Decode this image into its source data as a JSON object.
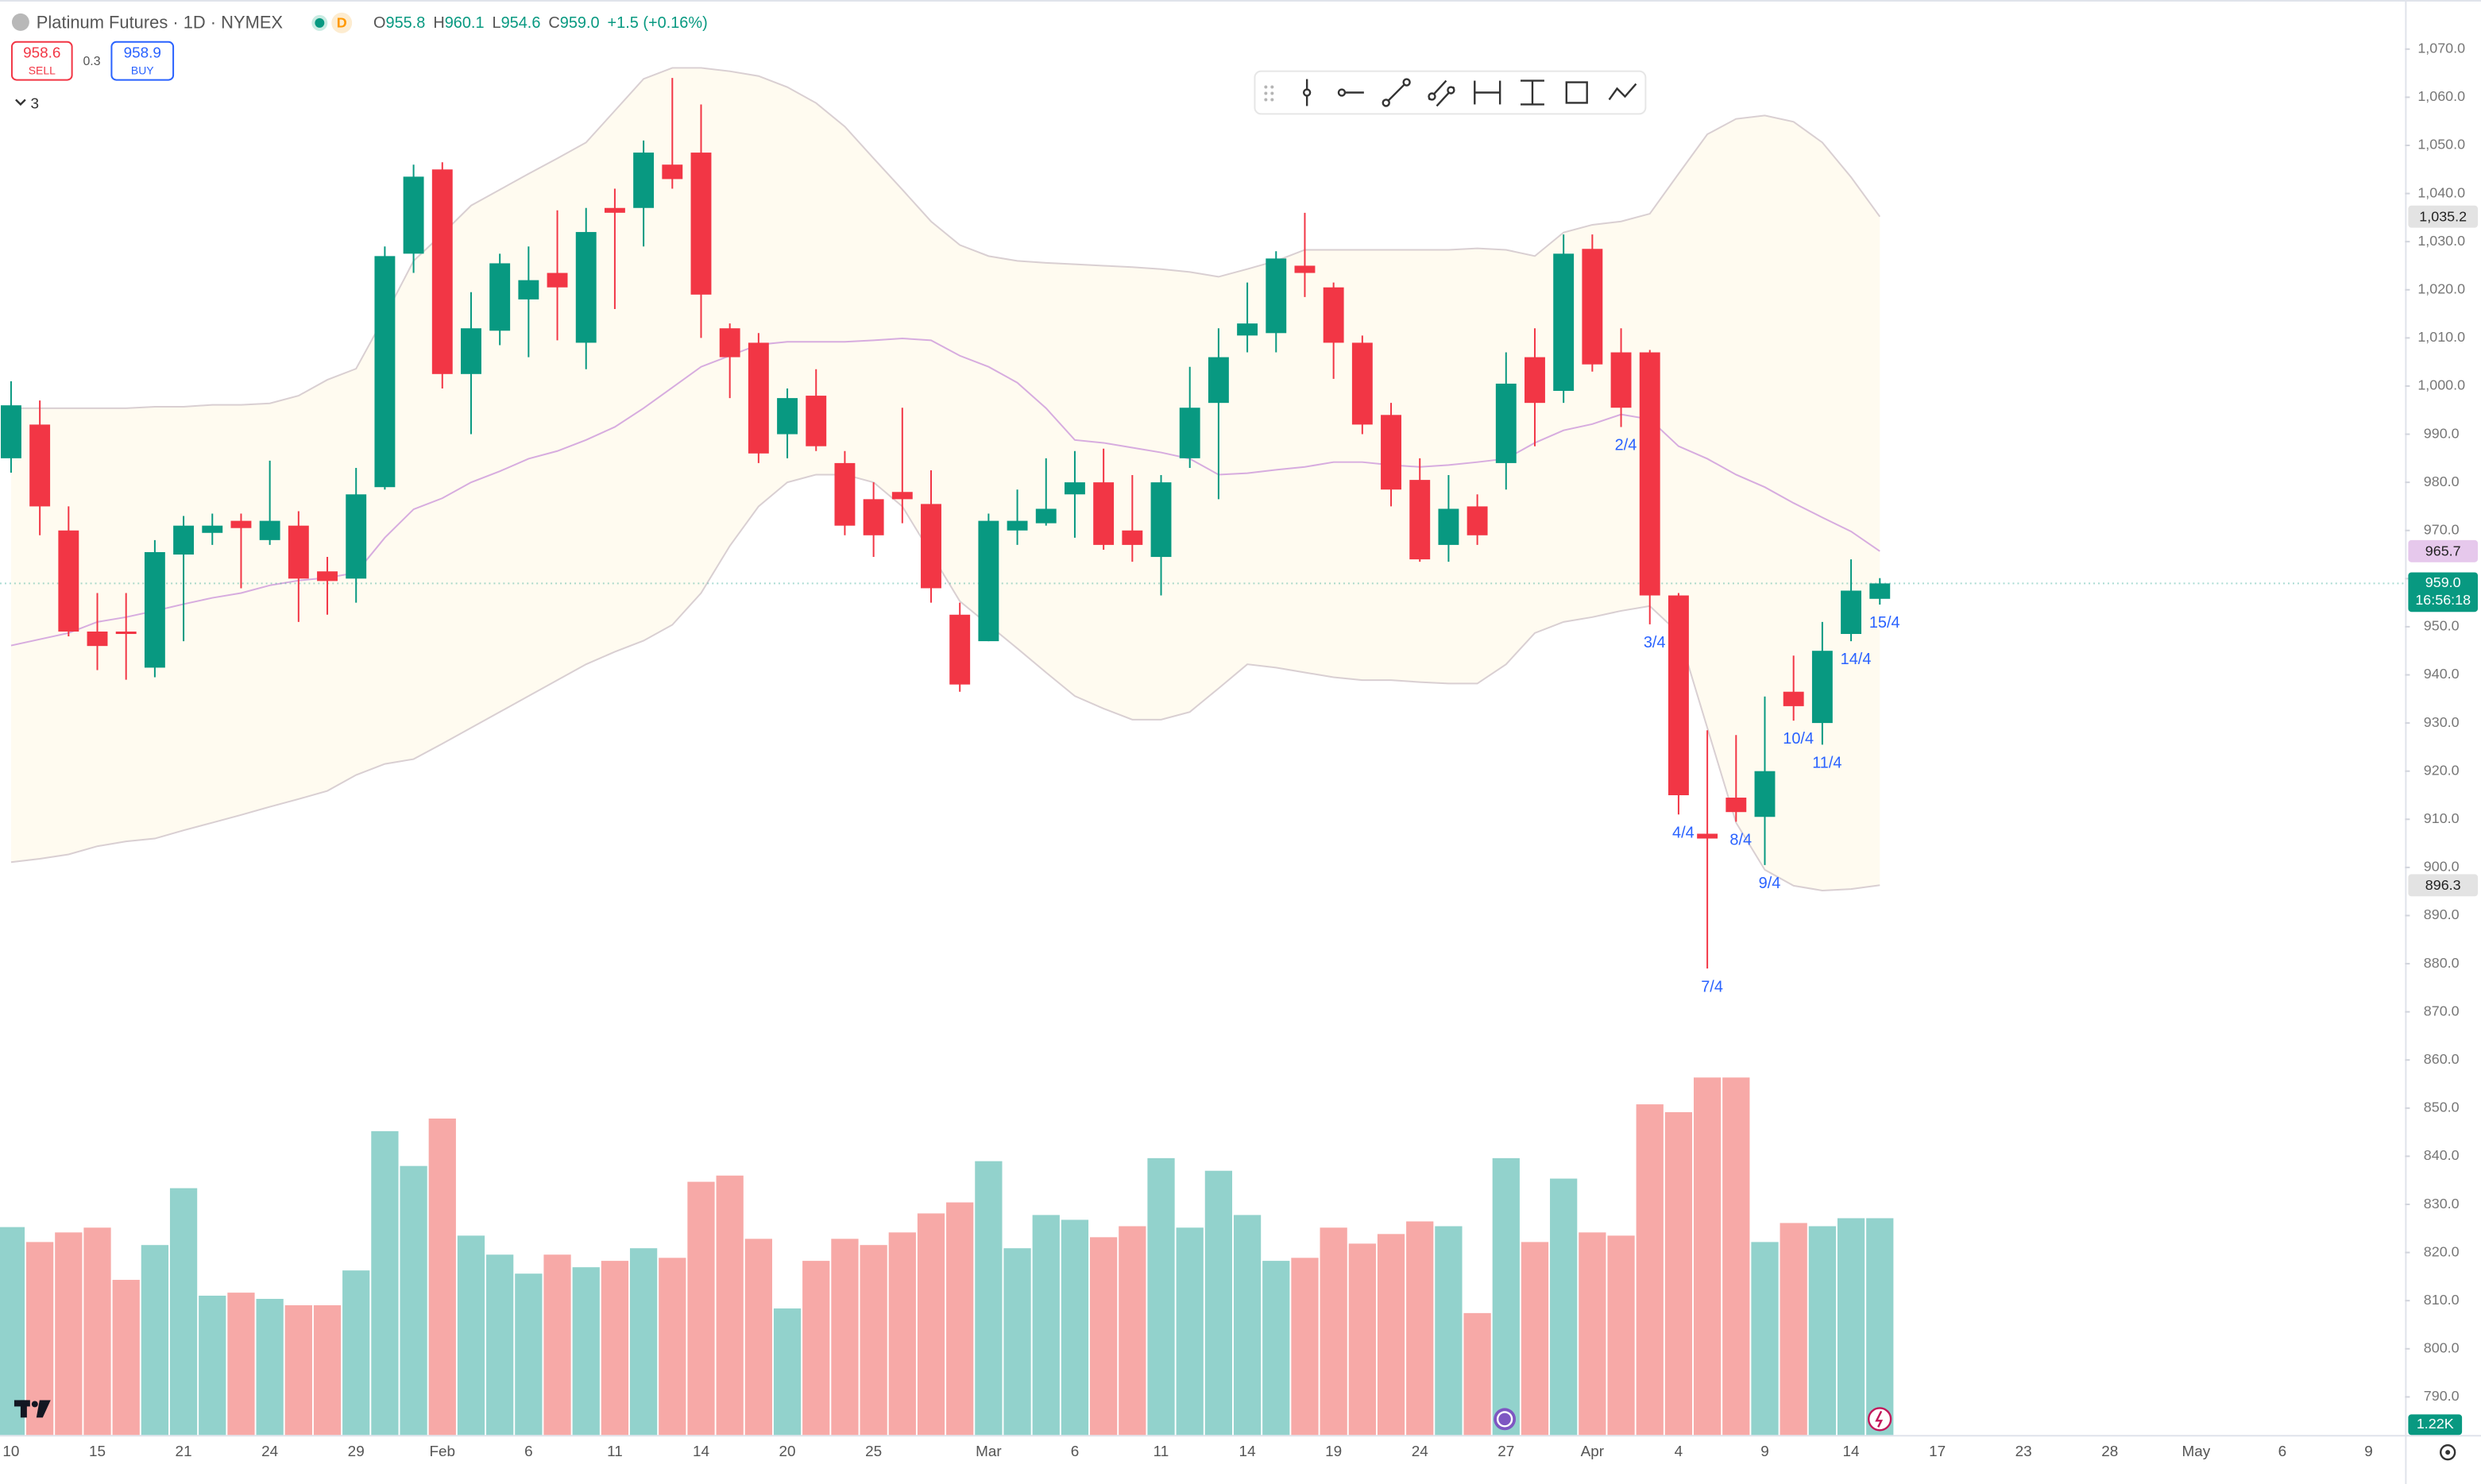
{
  "header": {
    "symbol": "Platinum Futures · 1D · NYMEX",
    "badge": "D",
    "ohlc": [
      {
        "key": "O",
        "value": "955.8"
      },
      {
        "key": "H",
        "value": "960.1"
      },
      {
        "key": "L",
        "value": "954.6"
      },
      {
        "key": "C",
        "value": "959.0"
      }
    ],
    "change": "+1.5 (+0.16%)",
    "sell": {
      "price": "958.6",
      "label": "SELL"
    },
    "spread": "0.3",
    "buy": {
      "price": "958.9",
      "label": "BUY"
    },
    "indicators": "3"
  },
  "chart_data": {
    "type": "candlestick",
    "up_color": "#089981",
    "down_color": "#f23645",
    "up_volume_color": "#92d2cc",
    "down_volume_color": "#f7a9a7",
    "grid": false,
    "ylim": [
      782.1,
      1080.2
    ],
    "volume_ylim": [
      0,
      8077
    ],
    "yticks": [
      {
        "value": 790,
        "label": "790.0"
      },
      {
        "value": 800,
        "label": "800.0"
      },
      {
        "value": 810,
        "label": "810.0"
      },
      {
        "value": 820,
        "label": "820.0"
      },
      {
        "value": 830,
        "label": "830.0"
      },
      {
        "value": 840,
        "label": "840.0"
      },
      {
        "value": 850,
        "label": "850.0"
      },
      {
        "value": 860,
        "label": "860.0"
      },
      {
        "value": 870,
        "label": "870.0"
      },
      {
        "value": 880,
        "label": "880.0"
      },
      {
        "value": 890,
        "label": "890.0"
      },
      {
        "value": 900,
        "label": "900.0"
      },
      {
        "value": 910,
        "label": "910.0"
      },
      {
        "value": 920,
        "label": "920.0"
      },
      {
        "value": 930,
        "label": "930.0"
      },
      {
        "value": 940,
        "label": "940.0"
      },
      {
        "value": 950,
        "label": "950.0"
      },
      {
        "value": 960,
        "label": "960.0"
      },
      {
        "value": 970,
        "label": "970.0"
      },
      {
        "value": 980,
        "label": "980.0"
      },
      {
        "value": 990,
        "label": "990.0"
      },
      {
        "value": 1000,
        "label": "1,000.0"
      },
      {
        "value": 1010,
        "label": "1,010.0"
      },
      {
        "value": 1020,
        "label": "1,020.0"
      },
      {
        "value": 1030,
        "label": "1,030.0"
      },
      {
        "value": 1040,
        "label": "1,040.0"
      },
      {
        "value": 1050,
        "label": "1,050.0"
      },
      {
        "value": 1060,
        "label": "1,060.0"
      },
      {
        "value": 1070,
        "label": "1,070.0"
      }
    ],
    "categories": [
      "10",
      null,
      null,
      "15",
      null,
      null,
      "21",
      null,
      null,
      "24",
      null,
      null,
      "29",
      null,
      null,
      "Feb",
      null,
      null,
      "6",
      null,
      null,
      "11",
      null,
      null,
      "14",
      null,
      null,
      "20",
      null,
      null,
      "25",
      null,
      null,
      null,
      "Mar",
      null,
      null,
      "6",
      null,
      null,
      "11",
      null,
      null,
      "14",
      null,
      null,
      "19",
      null,
      null,
      "24",
      null,
      null,
      "27",
      null,
      null,
      "Apr",
      null,
      null,
      "4",
      null,
      null,
      "9",
      null,
      null,
      "14",
      null,
      null,
      "17",
      null,
      null,
      "23",
      null,
      null,
      "28",
      null,
      null,
      "May",
      null,
      null,
      "6",
      null,
      null,
      "9"
    ],
    "open": [
      985,
      992,
      970,
      949,
      949,
      941.5,
      965,
      969.5,
      972,
      968,
      971,
      961.5,
      960,
      979,
      1027.5,
      1045,
      1002.5,
      1011.5,
      1018,
      1023.5,
      1009,
      1037,
      1037,
      1046,
      1048.5,
      1012,
      1009,
      990,
      998,
      984,
      976.5,
      978,
      975.5,
      952.5,
      947,
      970,
      971.5,
      977.5,
      980,
      970,
      964.5,
      985,
      996.5,
      1010.5,
      1011,
      1025,
      1020.5,
      1009,
      994,
      980.5,
      967,
      975,
      984,
      1006,
      999,
      1028.5,
      1007,
      1007,
      956.5,
      907,
      914.5,
      910.5,
      936.5,
      930,
      948.5,
      955.8,
      null,
      null,
      null,
      null,
      null,
      null,
      null,
      null,
      null,
      null,
      null,
      null,
      null,
      null,
      null,
      null,
      null
    ],
    "high": [
      1001,
      997,
      975,
      957,
      957,
      968,
      973,
      973.5,
      973.5,
      984.5,
      974,
      964.5,
      983,
      1029,
      1046,
      1046.5,
      1019.5,
      1027.5,
      1029,
      1036.5,
      1037,
      1041,
      1051,
      1064,
      1058.5,
      1013,
      1011,
      999.5,
      1003.5,
      986.5,
      980,
      995.5,
      982.5,
      955,
      973.5,
      978.5,
      985,
      986.5,
      987,
      981.5,
      981.5,
      1004,
      1012,
      1021.5,
      1028,
      1036,
      1021.5,
      1010.5,
      996.5,
      985,
      981.5,
      977.5,
      1007,
      1012,
      1031.5,
      1031.5,
      1012,
      1007.5,
      957,
      928.5,
      927.5,
      935.5,
      944,
      951,
      964,
      960.1,
      null,
      null,
      null,
      null,
      null,
      null,
      null,
      null,
      null,
      null,
      null,
      null,
      null,
      null,
      null,
      null,
      null
    ],
    "low": [
      982,
      969,
      948,
      941,
      939,
      939.5,
      947,
      967,
      958,
      967,
      951,
      952.5,
      955,
      978.5,
      1023.5,
      999.5,
      990,
      1008.5,
      1006,
      1009.5,
      1003.5,
      1016,
      1029,
      1041,
      1010,
      997.5,
      984,
      985,
      986.5,
      969,
      964.5,
      971.5,
      955,
      936.5,
      947,
      967,
      971,
      968.5,
      966,
      963.5,
      956.5,
      983,
      976.5,
      1007,
      1007,
      1018.5,
      1001.5,
      990,
      975,
      963.5,
      963.5,
      967,
      978.5,
      987.5,
      996.5,
      1003,
      991.5,
      950.5,
      911,
      879,
      909.5,
      900.5,
      930.5,
      925.5,
      947,
      954.6,
      null,
      null,
      null,
      null,
      null,
      null,
      null,
      null,
      null,
      null,
      null,
      null,
      null,
      null,
      null,
      null,
      null
    ],
    "close": [
      996,
      975,
      949,
      946,
      948.5,
      965.5,
      971,
      971,
      970.5,
      972,
      960,
      959.5,
      977.5,
      1027,
      1043.5,
      1002.5,
      1012,
      1025.5,
      1022,
      1020.5,
      1032,
      1036,
      1048.5,
      1043,
      1019,
      1006,
      986,
      997.5,
      987.5,
      971,
      969,
      976.5,
      958,
      938,
      972,
      972,
      974.5,
      980,
      967,
      967,
      980,
      995.5,
      1006,
      1013,
      1026.5,
      1023.5,
      1009,
      992,
      978.5,
      964,
      974.5,
      969,
      1000.5,
      996.5,
      1027.5,
      1004.5,
      995.5,
      956.5,
      915,
      906,
      911.5,
      920,
      933.5,
      945,
      957.5,
      959,
      null,
      null,
      null,
      null,
      null,
      null,
      null,
      null,
      null,
      null,
      null,
      null,
      null,
      null,
      null,
      null,
      null
    ],
    "volume": [
      1170,
      1086,
      1140,
      1167,
      873,
      1069,
      1389,
      784,
      801,
      766,
      730,
      730,
      926,
      1710,
      1514,
      1781,
      1122,
      1015,
      908,
      1015,
      944,
      980,
      1051,
      997,
      1425,
      1460,
      1104,
      712,
      980,
      1104,
      1069,
      1140,
      1247,
      1309,
      1541,
      1051,
      1238,
      1211,
      1113,
      1175,
      1558,
      1167,
      1487,
      1238,
      980,
      997,
      1167,
      1077,
      1131,
      1202,
      1175,
      686,
      1558,
      1086,
      1443,
      1140,
      1122,
      1861,
      1817,
      2012,
      2012,
      1086,
      1193,
      1175,
      1220,
      1220,
      null,
      null,
      null,
      null,
      null,
      null,
      null,
      null,
      null,
      null,
      null,
      null,
      null,
      null,
      null,
      null,
      null
    ],
    "candle_labels": [
      null,
      null,
      null,
      null,
      null,
      null,
      null,
      null,
      null,
      null,
      null,
      null,
      null,
      null,
      null,
      null,
      null,
      null,
      null,
      null,
      null,
      null,
      null,
      null,
      null,
      null,
      null,
      null,
      null,
      null,
      null,
      null,
      null,
      null,
      null,
      null,
      null,
      null,
      null,
      null,
      null,
      null,
      null,
      null,
      null,
      null,
      null,
      null,
      null,
      null,
      null,
      null,
      null,
      null,
      null,
      null,
      "2/4",
      "3/4",
      "4/4",
      "7/4",
      "8/4",
      "9/4",
      "10/4",
      "11/4",
      "14/4",
      "15/4",
      null,
      null,
      null,
      null,
      null,
      null,
      null,
      null,
      null,
      null,
      null,
      null,
      null,
      null,
      null,
      null,
      null
    ],
    "band_fill": "#fffbf0",
    "bands": [
      {
        "color": "#d9cfd2",
        "values": [
          995.4,
          995.4,
          995.4,
          995.4,
          995.4,
          995.7,
          995.7,
          996.1,
          996.1,
          996.4,
          998.0,
          1001.3,
          1003.6,
          1014.5,
          1026.0,
          1031.6,
          1037.5,
          1040.8,
          1044.1,
          1047.3,
          1050.6,
          1057.2,
          1063.8,
          1066.1,
          1066.1,
          1065.4,
          1064.4,
          1062.1,
          1058.8,
          1053.9,
          1047.3,
          1040.8,
          1034.2,
          1029.3,
          1027.0,
          1026.0,
          1025.6,
          1025.3,
          1025.0,
          1024.7,
          1024.3,
          1023.7,
          1022.7,
          1024.3,
          1026.0,
          1028.3,
          1028.3,
          1028.3,
          1028.3,
          1028.3,
          1028.3,
          1028.6,
          1028.3,
          1027.0,
          1031.9,
          1033.5,
          1034.2,
          1035.8,
          1044.1,
          1052.3,
          1055.5,
          1056.2,
          1054.9,
          1050.6,
          1043.4,
          1035.2,
          null,
          null,
          null,
          null,
          null,
          null,
          null,
          null,
          null,
          null,
          null,
          null,
          null,
          null,
          null,
          null,
          null
        ]
      },
      {
        "color": "#d7acdf",
        "values": [
          946.1,
          947.4,
          948.7,
          951.0,
          952.0,
          953.3,
          954.7,
          956.0,
          957.0,
          958.6,
          959.6,
          960.2,
          961.2,
          968.5,
          974.4,
          976.7,
          980.0,
          982.3,
          984.9,
          986.5,
          988.8,
          991.5,
          995.4,
          999.7,
          1004.0,
          1006.3,
          1008.6,
          1009.2,
          1009.2,
          1009.2,
          1009.5,
          1009.9,
          1009.5,
          1006.3,
          1004.0,
          1000.7,
          995.4,
          988.8,
          988.2,
          987.2,
          986.2,
          984.9,
          981.6,
          981.9,
          982.6,
          983.2,
          984.2,
          984.2,
          983.6,
          983.2,
          983.6,
          984.2,
          984.9,
          988.2,
          990.8,
          992.1,
          994.1,
          993.1,
          987.5,
          984.9,
          981.6,
          979.0,
          975.7,
          972.7,
          969.8,
          965.7,
          null,
          null,
          null,
          null,
          null,
          null,
          null,
          null,
          null,
          null,
          null,
          null,
          null,
          null,
          null,
          null,
          null
        ]
      },
      {
        "color": "#d9cfd2",
        "values": [
          901.1,
          901.8,
          902.7,
          904.4,
          905.4,
          906.0,
          907.7,
          909.3,
          910.9,
          912.6,
          914.2,
          915.9,
          919.2,
          921.5,
          922.5,
          925.7,
          929.0,
          932.3,
          935.6,
          938.9,
          942.2,
          944.8,
          947.1,
          950.4,
          957.0,
          966.8,
          975.0,
          980.0,
          981.6,
          981.6,
          980.0,
          975.0,
          965.2,
          955.3,
          950.4,
          945.5,
          940.5,
          935.6,
          933.0,
          930.7,
          930.7,
          932.3,
          937.2,
          942.2,
          941.5,
          940.5,
          939.5,
          938.9,
          938.9,
          938.5,
          938.2,
          938.2,
          942.2,
          948.7,
          951.0,
          952.0,
          953.3,
          954.3,
          948.7,
          929.0,
          909.3,
          899.5,
          896.2,
          895.2,
          895.5,
          896.3,
          null,
          null,
          null,
          null,
          null,
          null,
          null,
          null,
          null,
          null,
          null,
          null,
          null,
          null,
          null,
          null,
          null
        ]
      }
    ],
    "price_labels": [
      {
        "value": 1035.2,
        "label": "1,035.2",
        "color": "#e3e3e3",
        "text_color": "#222222"
      },
      {
        "value": 965.7,
        "label": "965.7",
        "color": "#e6c8ec",
        "text_color": "#222222"
      },
      {
        "value": 896.3,
        "label": "896.3",
        "color": "#e3e3e3",
        "text_color": "#222222"
      }
    ],
    "last_price": {
      "value": 959,
      "label": "959.0",
      "countdown": "16:56:18"
    },
    "last_volume": {
      "value": 1220,
      "label": "1.22K"
    }
  }
}
